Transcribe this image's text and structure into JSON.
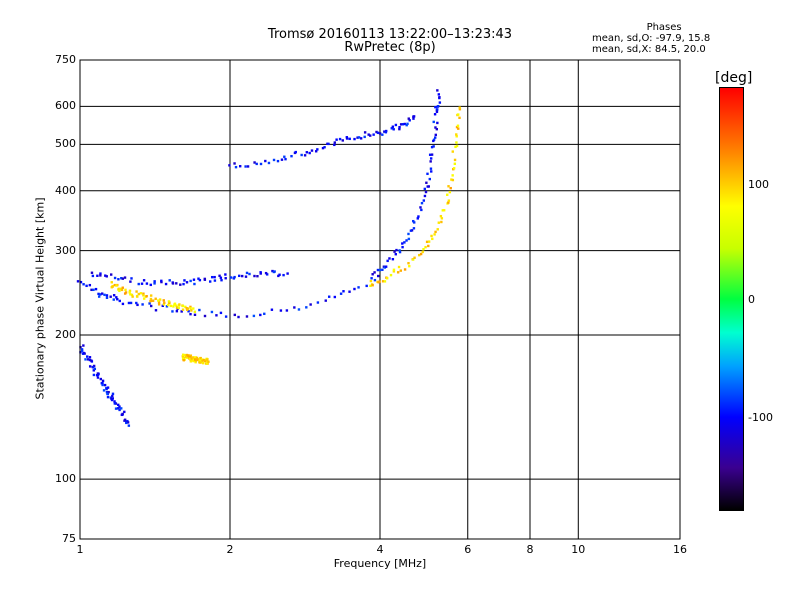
{
  "header": {
    "title_line1": "Tromsø 20160113 13:22:00–13:23:43",
    "title_line2": "RwPretec (8p)",
    "phases_title": "Phases",
    "phases_o": "mean, sd,O: -97.9, 15.8",
    "phases_x": "mean, sd,X:  84.5, 20.0"
  },
  "colorbar": {
    "unit": "[deg]",
    "ticks": [
      "100",
      "0",
      "-100"
    ],
    "colors": [
      "#ff0000",
      "#ff7a00",
      "#ffff00",
      "#00ff40",
      "#00ffd0",
      "#0000ff",
      "#000000"
    ]
  },
  "chart_data": {
    "type": "scatter",
    "title": "Tromsø 20160113 13:22:00–13:23:43",
    "subtitle": "RwPretec (8p)",
    "xlabel": "Frequency [MHz]",
    "ylabel": "Stationary phase Virtual Height [km]",
    "x_scale": "log",
    "y_scale": "log",
    "xlim": [
      1,
      16
    ],
    "ylim": [
      75,
      750
    ],
    "x_ticks": [
      "1",
      "2",
      "4",
      "6",
      "8",
      "10",
      "16"
    ],
    "y_ticks": [
      "75",
      "100",
      "200",
      "300",
      "400",
      "500",
      "600",
      "750"
    ],
    "grid": true,
    "color_scale": {
      "label": "[deg]",
      "range": [
        -180,
        180
      ]
    },
    "series": [
      {
        "segments": [
          {
            "x": [
              1.0,
              1.05,
              1.1,
              1.15,
              1.2,
              1.3,
              1.45,
              1.6,
              1.75,
              2.0,
              2.3,
              2.7,
              3.1,
              3.5,
              3.9
            ],
            "y": [
              262,
              250,
              242,
              240,
              236,
              232,
              228,
              225,
              222,
              220,
              222,
              228,
              236,
              248,
              262
            ]
          },
          {
            "x": [
              3.9,
              4.2,
              4.5,
              4.8,
              5.0,
              5.1,
              5.2,
              5.25
            ],
            "y": [
              265,
              285,
              315,
              360,
              420,
              500,
              580,
              640
            ]
          },
          {
            "x": [
              2.0,
              2.4,
              2.8,
              3.2,
              3.6,
              4.0,
              4.4,
              4.7
            ],
            "y": [
              450,
              462,
              478,
              500,
              520,
              530,
              545,
              570
            ]
          },
          {
            "x": [
              1.0,
              1.05,
              1.1,
              1.15,
              1.2,
              1.25
            ],
            "y": [
              190,
              175,
              160,
              150,
              140,
              130
            ]
          },
          {
            "x": [
              1.05,
              1.2,
              1.4,
              1.6,
              1.8,
              2.0,
              2.3,
              2.6
            ],
            "y": [
              270,
              262,
              255,
              258,
              260,
              265,
              268,
              270
            ]
          }
        ],
        "phase": -100
      },
      {
        "segments": [
          {
            "x": [
              3.8,
              4.1,
              4.5,
              4.9,
              5.2,
              5.45,
              5.6,
              5.7,
              5.75
            ],
            "y": [
              255,
              262,
              278,
              300,
              330,
              380,
              440,
              520,
              600
            ]
          },
          {
            "x": [
              1.15,
              1.25,
              1.4,
              1.55,
              1.7
            ],
            "y": [
              255,
              245,
              238,
              230,
              225
            ]
          },
          {
            "x": [
              1.6,
              1.7,
              1.8
            ],
            "y": [
              180,
              178,
              176
            ]
          }
        ],
        "phase": 90
      }
    ]
  }
}
